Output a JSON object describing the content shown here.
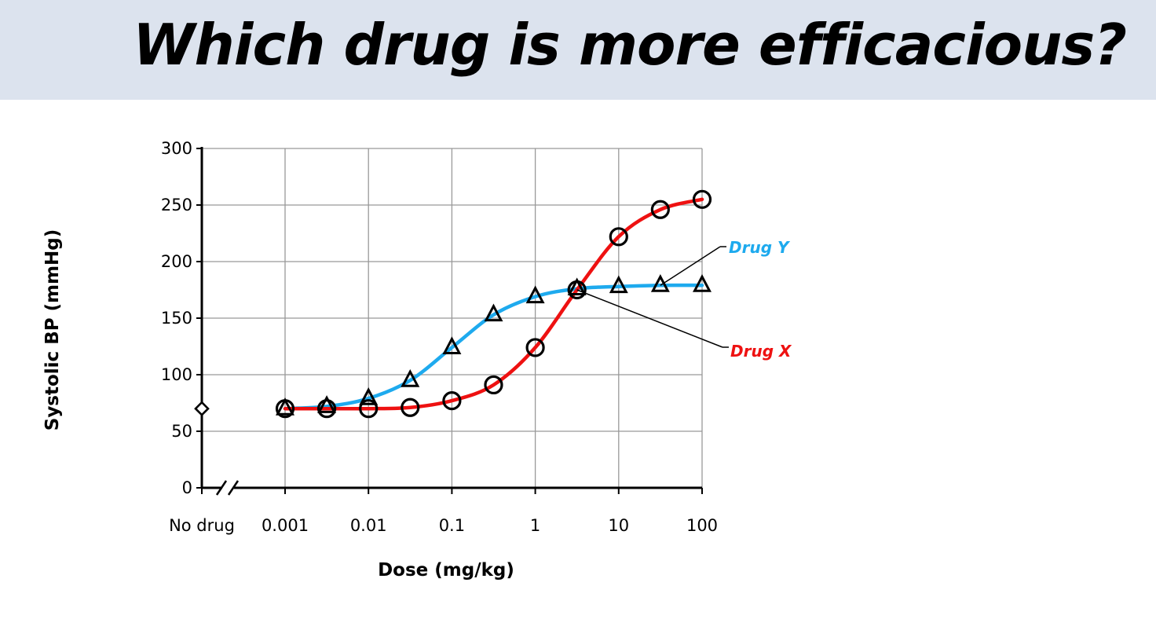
{
  "slide": {
    "title": "Which drug is more efficacious?"
  },
  "chart_data": {
    "type": "line",
    "title": "",
    "xlabel": "Dose (mg/kg)",
    "ylabel": "Systolic BP (mmHg)",
    "xscale": "log",
    "xlim": [
      0.001,
      100
    ],
    "ylim": [
      0,
      300
    ],
    "grid": true,
    "x_tick_labels": [
      "No drug",
      "0.001",
      "0.01",
      "0.1",
      "1",
      "10",
      "100"
    ],
    "y_ticks": [
      0,
      50,
      100,
      150,
      200,
      250,
      300
    ],
    "baseline": {
      "label": "No drug",
      "value": 70,
      "marker": "diamond"
    },
    "series": [
      {
        "name": "Drug X",
        "color": "#ee1111",
        "marker": "circle",
        "x": [
          0.001,
          0.00316,
          0.01,
          0.0316,
          0.1,
          0.316,
          1,
          3.16,
          10,
          31.6,
          100
        ],
        "values": [
          70,
          70,
          70,
          71,
          77,
          91,
          124,
          175,
          222,
          246,
          255
        ]
      },
      {
        "name": "Drug Y",
        "color": "#1eaaee",
        "marker": "triangle",
        "x": [
          0.001,
          0.00316,
          0.01,
          0.0316,
          0.1,
          0.316,
          1,
          3.16,
          10,
          31.6,
          100
        ],
        "values": [
          70,
          72,
          79,
          95,
          124,
          153,
          169,
          176,
          178,
          179,
          179
        ]
      }
    ],
    "annotations": [
      {
        "text": "Drug Y",
        "series": "Drug Y",
        "color": "#1eaaee"
      },
      {
        "text": "Drug X",
        "series": "Drug X",
        "color": "#ee1111"
      }
    ]
  }
}
